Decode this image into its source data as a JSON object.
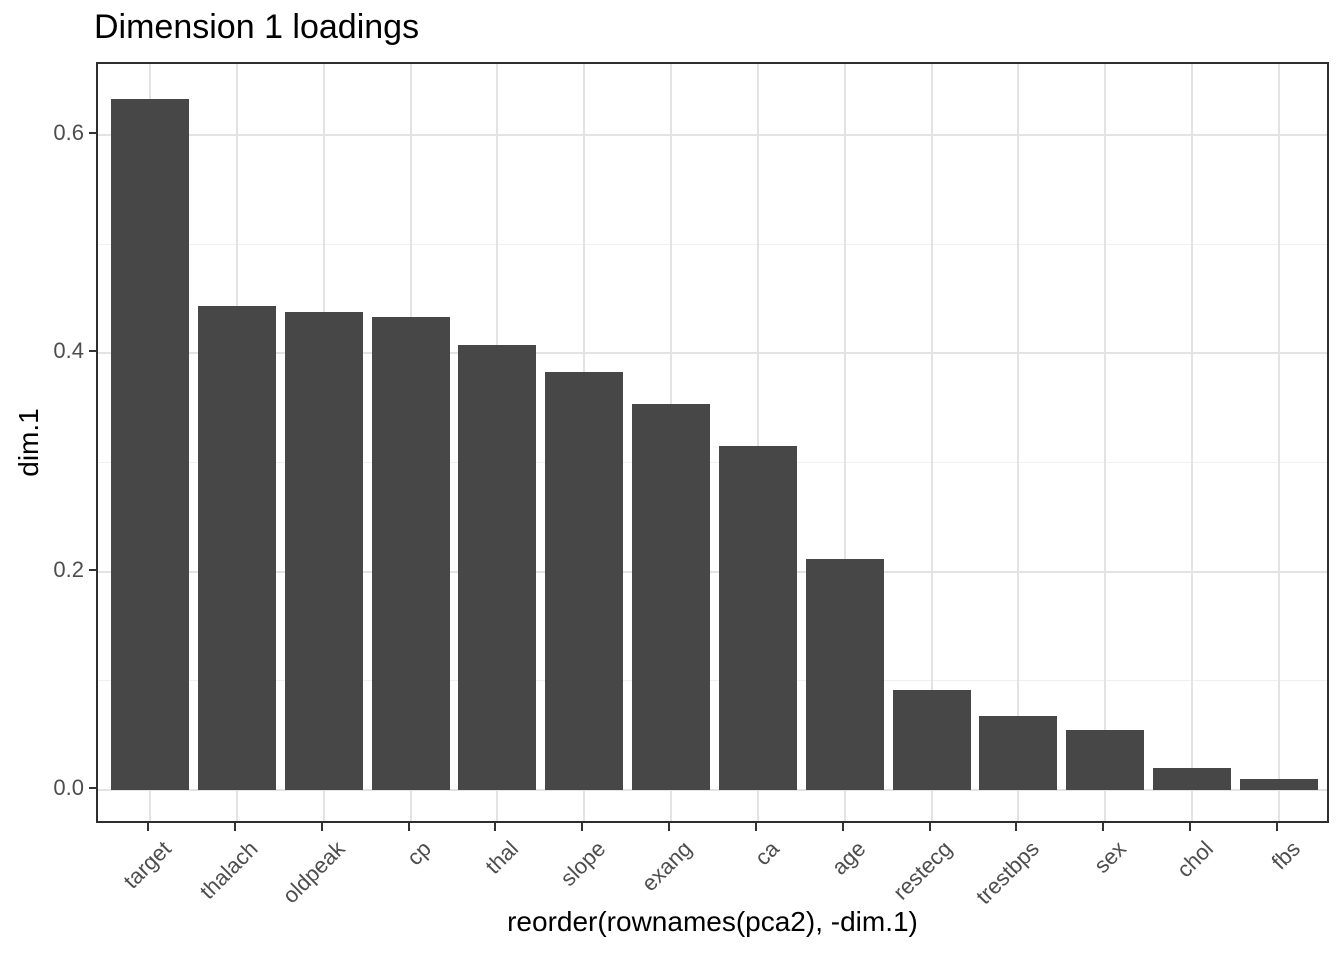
{
  "chart_data": {
    "type": "bar",
    "title": "Dimension 1 loadings",
    "xlabel": "reorder(rownames(pca2), -dim.1)",
    "ylabel": "dim.1",
    "categories": [
      "target",
      "thalach",
      "oldpeak",
      "cp",
      "thal",
      "slope",
      "exang",
      "ca",
      "age",
      "restecg",
      "trestbps",
      "sex",
      "chol",
      "fbs"
    ],
    "values": [
      0.633,
      0.443,
      0.438,
      0.433,
      0.408,
      0.383,
      0.354,
      0.315,
      0.212,
      0.092,
      0.068,
      0.055,
      0.02,
      0.01
    ],
    "yticks": {
      "labels": [
        "0.0",
        "0.2",
        "0.4",
        "0.6"
      ],
      "values": [
        0.0,
        0.2,
        0.4,
        0.6
      ]
    },
    "yminor_values": [
      0.1,
      0.3,
      0.5
    ],
    "ylim_display": [
      -0.032,
      0.665
    ],
    "bar_width_fraction": 0.9,
    "grid": "major and minor horizontal, major vertical at category centers",
    "legend_position": "none",
    "colors": {
      "bar_fill": "#474747",
      "panel_border": "#2e2e2e",
      "grid_major": "#e3e3e3",
      "grid_minor": "#f0f0f0",
      "tick_mark": "#333333",
      "axis_text": "#4d4d4d",
      "title_text": "#000000",
      "panel_background": "#ffffff"
    }
  }
}
